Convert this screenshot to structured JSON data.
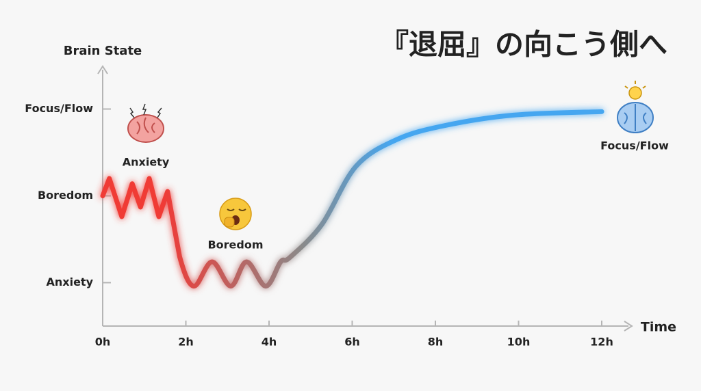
{
  "chart_data": {
    "type": "line",
    "title": "『退屈』の向こう側へ",
    "y_label": "Brain State",
    "x_label": "Time",
    "xlim": [
      0,
      12.7
    ],
    "ylim": [
      0.5,
      3.5
    ],
    "xticks": [
      {
        "value": 0,
        "label": "0h"
      },
      {
        "value": 2,
        "label": "2h"
      },
      {
        "value": 4,
        "label": "4h"
      },
      {
        "value": 6,
        "label": "6h"
      },
      {
        "value": 8,
        "label": "8h"
      },
      {
        "value": 10,
        "label": "10h"
      },
      {
        "value": 12,
        "label": "12h"
      }
    ],
    "yticks": [
      {
        "value": 1,
        "label": "Anxiety"
      },
      {
        "value": 2,
        "label": "Boredom"
      },
      {
        "value": 3,
        "label": "Focus/Flow"
      }
    ],
    "colors": [
      "#f03a36",
      "#8a8a8a",
      "#45a6f0"
    ],
    "x": [
      0,
      0.16,
      0.46,
      0.71,
      0.91,
      1.12,
      1.35,
      1.56,
      1.85,
      2.19,
      2.63,
      3.08,
      3.46,
      3.92,
      4.28,
      4.5,
      5.27,
      6.09,
      7.08,
      8.23,
      9.88,
      12
    ],
    "values": [
      2.0,
      2.2,
      1.76,
      2.14,
      1.87,
      2.2,
      1.76,
      2.05,
      1.3,
      0.96,
      1.24,
      0.96,
      1.24,
      0.96,
      1.24,
      1.29,
      1.67,
      2.34,
      2.65,
      2.81,
      2.93,
      2.97
    ],
    "annotations": [
      "Anxiety",
      "Boredom",
      "Focus/Flow"
    ]
  }
}
